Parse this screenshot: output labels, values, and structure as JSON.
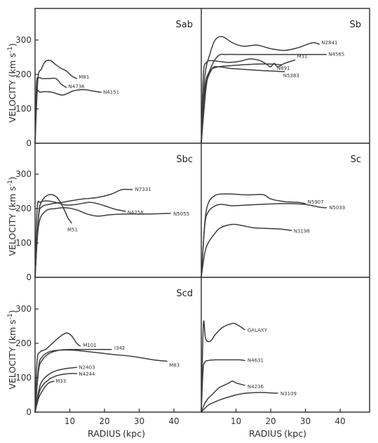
{
  "chart_data": [
    {
      "type": "line",
      "title": "Sab",
      "ylabel": "VELOCITY (km s⁻¹)",
      "xlabel": "",
      "xlim": [
        0,
        48
      ],
      "ylim": [
        0,
        380
      ],
      "yticks": [
        "0",
        "100",
        "200",
        "300"
      ],
      "xticks": [],
      "series": [
        {
          "name": "M81",
          "x": [
            0,
            0.8,
            1.8,
            3,
            4.5,
            6,
            7.5,
            9,
            10.5,
            12
          ],
          "y": [
            0,
            185,
            215,
            238,
            240,
            228,
            218,
            210,
            196,
            188
          ]
        },
        {
          "name": "N4736",
          "x": [
            0,
            0.4,
            1,
            2,
            4,
            6,
            7.5,
            9
          ],
          "y": [
            0,
            170,
            190,
            188,
            188,
            188,
            172,
            162
          ]
        },
        {
          "name": "N4151",
          "x": [
            0,
            0.5,
            1.5,
            3,
            5,
            8,
            11,
            14,
            16.5,
            19
          ],
          "y": [
            0,
            140,
            148,
            150,
            148,
            140,
            152,
            156,
            152,
            148
          ]
        }
      ]
    },
    {
      "type": "line",
      "title": "Sb",
      "ylabel": "",
      "xlabel": "",
      "xlim": [
        0,
        48
      ],
      "ylim": [
        0,
        380
      ],
      "yticks": [],
      "xticks": [],
      "series": [
        {
          "name": "N2841",
          "x": [
            0,
            1,
            2.5,
            4,
            6,
            9,
            12,
            16,
            20,
            24,
            28,
            32,
            34
          ],
          "y": [
            0,
            190,
            260,
            300,
            310,
            292,
            282,
            285,
            275,
            270,
            278,
            292,
            288
          ]
        },
        {
          "name": "N4565",
          "x": [
            0,
            1.5,
            3,
            5,
            7,
            10,
            14,
            18,
            22,
            26,
            30,
            36
          ],
          "y": [
            0,
            170,
            225,
            255,
            258,
            258,
            258,
            258,
            258,
            258,
            258,
            258
          ]
        },
        {
          "name": "M31",
          "x": [
            0,
            0.6,
            1.5,
            3,
            5,
            8,
            11,
            14,
            17,
            19,
            20,
            21,
            22,
            24,
            27
          ],
          "y": [
            0,
            200,
            235,
            240,
            238,
            235,
            238,
            245,
            240,
            228,
            222,
            232,
            222,
            232,
            242
          ]
        },
        {
          "name": "N891",
          "x": [
            0,
            1,
            2.5,
            5,
            8,
            12,
            16,
            20,
            23
          ],
          "y": [
            0,
            160,
            210,
            222,
            225,
            228,
            230,
            230,
            228
          ]
        },
        {
          "name": "N5383",
          "x": [
            0,
            1,
            3,
            5,
            8,
            12,
            16,
            20,
            24
          ],
          "y": [
            0,
            150,
            215,
            222,
            218,
            215,
            212,
            210,
            208
          ]
        }
      ]
    },
    {
      "type": "line",
      "title": "Sbc",
      "ylabel": "VELOCITY (km s⁻¹)",
      "xlabel": "",
      "xlim": [
        0,
        48
      ],
      "ylim": [
        0,
        380
      ],
      "yticks": [
        "0",
        "100",
        "200",
        "300"
      ],
      "xticks": [],
      "series": [
        {
          "name": "N7331",
          "x": [
            0,
            1,
            2,
            4,
            6,
            8,
            10,
            14,
            18,
            22,
            25,
            28
          ],
          "y": [
            0,
            175,
            205,
            212,
            216,
            218,
            222,
            228,
            232,
            242,
            255,
            255
          ]
        },
        {
          "name": "N4258",
          "x": [
            0,
            0.6,
            1.5,
            3,
            5,
            7,
            9,
            12,
            16,
            20,
            23,
            26
          ],
          "y": [
            0,
            200,
            218,
            222,
            220,
            215,
            210,
            212,
            218,
            208,
            198,
            192
          ]
        },
        {
          "name": "N5055",
          "x": [
            0,
            1,
            3,
            6,
            9,
            12,
            15,
            18,
            22,
            27,
            33,
            39
          ],
          "y": [
            0,
            150,
            192,
            200,
            202,
            196,
            184,
            178,
            182,
            184,
            184,
            186
          ]
        },
        {
          "name": "M51",
          "x": [
            0,
            1,
            2,
            3.5,
            5,
            6.5,
            8,
            9.5,
            10.5
          ],
          "y": [
            0,
            180,
            222,
            238,
            240,
            230,
            205,
            172,
            158
          ]
        }
      ]
    },
    {
      "type": "line",
      "title": "Sc",
      "ylabel": "",
      "xlabel": "",
      "xlim": [
        0,
        48
      ],
      "ylim": [
        0,
        380
      ],
      "yticks": [],
      "xticks": [],
      "series": [
        {
          "name": "N5907",
          "x": [
            0,
            1,
            2,
            4,
            6,
            9,
            12,
            15,
            18,
            20,
            24,
            28,
            30
          ],
          "y": [
            0,
            155,
            215,
            238,
            242,
            242,
            240,
            240,
            240,
            228,
            220,
            218,
            214
          ]
        },
        {
          "name": "N5033",
          "x": [
            0,
            1,
            2,
            4,
            6,
            9,
            13,
            17,
            22,
            26,
            30,
            34,
            36
          ],
          "y": [
            0,
            150,
            190,
            208,
            212,
            208,
            210,
            212,
            214,
            214,
            212,
            204,
            202
          ]
        },
        {
          "name": "N3198",
          "x": [
            0,
            1,
            2,
            3.5,
            5,
            7,
            9.5,
            12,
            15,
            19,
            23,
            26
          ],
          "y": [
            0,
            70,
            100,
            122,
            140,
            150,
            154,
            150,
            144,
            142,
            140,
            136
          ]
        }
      ]
    },
    {
      "type": "line",
      "title": "Scd",
      "ylabel": "VELOCITY (km s⁻¹)",
      "xlabel": "RADIUS (kpc)",
      "xlim": [
        0,
        48
      ],
      "ylim": [
        0,
        380
      ],
      "yticks": [
        "0",
        "100",
        "200",
        "300"
      ],
      "xticks": [
        "10",
        "20",
        "30",
        "40"
      ],
      "series": [
        {
          "name": "M101",
          "x": [
            0,
            0.6,
            1.5,
            3,
            5,
            7,
            9,
            10.5,
            12,
            13
          ],
          "y": [
            0,
            150,
            175,
            182,
            200,
            218,
            230,
            222,
            200,
            192
          ]
        },
        {
          "name": "I342",
          "x": [
            0,
            1,
            2,
            4,
            7,
            10,
            14,
            19,
            22
          ],
          "y": [
            0,
            120,
            150,
            170,
            180,
            182,
            182,
            182,
            182
          ]
        },
        {
          "name": "M83",
          "x": [
            0,
            1,
            2,
            4,
            7,
            11,
            16,
            22,
            28,
            34,
            38
          ],
          "y": [
            0,
            130,
            160,
            175,
            180,
            180,
            175,
            168,
            162,
            152,
            148
          ]
        },
        {
          "name": "N2403",
          "x": [
            0,
            1,
            2,
            4,
            6,
            8,
            10,
            12
          ],
          "y": [
            0,
            60,
            90,
            110,
            120,
            125,
            128,
            130
          ]
        },
        {
          "name": "N4244",
          "x": [
            0,
            1,
            2,
            4,
            6,
            8,
            10,
            12
          ],
          "y": [
            0,
            50,
            75,
            95,
            105,
            110,
            112,
            112
          ]
        },
        {
          "name": "M33",
          "x": [
            0,
            1,
            2,
            3,
            4,
            5.5
          ],
          "y": [
            0,
            40,
            60,
            75,
            85,
            90
          ]
        }
      ]
    },
    {
      "type": "line",
      "title": "",
      "ylabel": "",
      "xlabel": "RADIUS (kpc)",
      "xlim": [
        0,
        48
      ],
      "ylim": [
        0,
        380
      ],
      "yticks": [],
      "xticks": [
        "10",
        "20",
        "30",
        "40"
      ],
      "series": [
        {
          "name": "GALAXY",
          "x": [
            0,
            0.6,
            1.2,
            2,
            3,
            4,
            6,
            8,
            9.5,
            11,
            12.5
          ],
          "y": [
            0,
            255,
            215,
            205,
            210,
            225,
            245,
            255,
            258,
            250,
            240
          ]
        },
        {
          "name": "N4631",
          "x": [
            0,
            0.5,
            1,
            2,
            4,
            7,
            9,
            11,
            12.5
          ],
          "y": [
            0,
            120,
            145,
            150,
            152,
            152,
            152,
            152,
            150
          ]
        },
        {
          "name": "N4236",
          "x": [
            0,
            1,
            2,
            3,
            4,
            5,
            7,
            8,
            9,
            10,
            11,
            12.5
          ],
          "y": [
            0,
            25,
            40,
            50,
            60,
            70,
            80,
            85,
            90,
            85,
            82,
            78
          ]
        },
        {
          "name": "N3109",
          "x": [
            0,
            2,
            4,
            6,
            8,
            10,
            12,
            14,
            16,
            18,
            20,
            22
          ],
          "y": [
            0,
            20,
            30,
            38,
            44,
            50,
            54,
            56,
            57,
            57,
            56,
            55
          ]
        }
      ]
    }
  ],
  "ui": {
    "ylabel_text": "VELOCITY (km s⁻¹)",
    "ylabel_main": "VELOCITY",
    "ylabel_units_open": "(km s",
    "ylabel_units_exp": "-1",
    "ylabel_units_close": ")",
    "xlabel_main": "RADIUS",
    "xlabel_units": "(kpc)"
  }
}
